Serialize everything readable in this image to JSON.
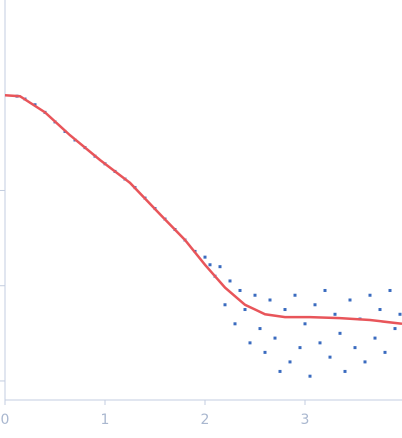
{
  "chart_data": {
    "type": "scatter",
    "xlim": [
      0,
      3.97
    ],
    "ylim": [
      -0.2,
      4.0
    ],
    "xticks": [
      0,
      1,
      2,
      3
    ],
    "yticks": [
      0,
      1,
      2
    ],
    "series": [
      {
        "type": "scatter",
        "color": "#3a6bbf",
        "x": [
          0.12,
          0.2,
          0.3,
          0.4,
          0.5,
          0.6,
          0.7,
          0.8,
          0.9,
          1.0,
          1.1,
          1.2,
          1.3,
          1.4,
          1.5,
          1.6,
          1.7,
          1.8,
          1.9,
          2.0,
          2.05,
          2.1,
          2.15,
          2.2,
          2.25,
          2.3,
          2.35,
          2.4,
          2.45,
          2.5,
          2.55,
          2.6,
          2.65,
          2.7,
          2.75,
          2.8,
          2.85,
          2.9,
          2.95,
          3.0,
          3.05,
          3.1,
          3.15,
          3.2,
          3.25,
          3.3,
          3.35,
          3.4,
          3.45,
          3.5,
          3.55,
          3.6,
          3.65,
          3.7,
          3.75,
          3.8,
          3.85,
          3.9,
          3.95
        ],
        "values": [
          2.99,
          2.96,
          2.9,
          2.82,
          2.72,
          2.62,
          2.53,
          2.45,
          2.36,
          2.28,
          2.2,
          2.12,
          2.03,
          1.92,
          1.81,
          1.7,
          1.59,
          1.48,
          1.36,
          1.3,
          1.22,
          1.1,
          1.2,
          0.8,
          1.05,
          0.6,
          0.95,
          0.75,
          0.4,
          0.9,
          0.55,
          0.3,
          0.85,
          0.45,
          0.1,
          0.75,
          0.2,
          0.9,
          0.35,
          0.6,
          0.05,
          0.8,
          0.4,
          0.95,
          0.25,
          0.7,
          0.5,
          0.1,
          0.85,
          0.35,
          0.65,
          0.2,
          0.9,
          0.45,
          0.75,
          0.3,
          0.95,
          0.55,
          0.7
        ]
      },
      {
        "type": "line",
        "color": "#e8555a",
        "x": [
          0,
          0.15,
          0.4,
          0.65,
          0.95,
          1.25,
          1.55,
          1.8,
          2.0,
          2.2,
          2.4,
          2.6,
          2.8,
          3.05,
          3.35,
          3.65,
          3.97
        ],
        "values": [
          3.0,
          2.99,
          2.82,
          2.58,
          2.32,
          2.08,
          1.75,
          1.48,
          1.22,
          0.98,
          0.8,
          0.7,
          0.67,
          0.67,
          0.66,
          0.64,
          0.6
        ]
      }
    ]
  }
}
